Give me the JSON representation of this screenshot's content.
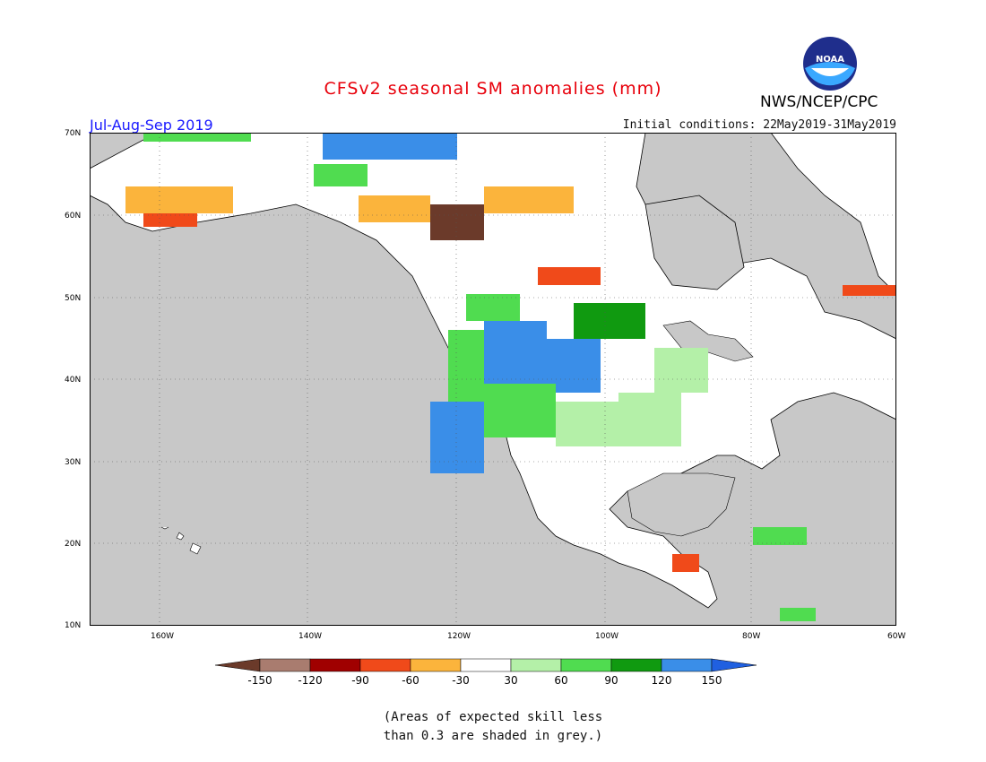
{
  "header": {
    "title": "CFSv2 seasonal SM anomalies (mm)",
    "season": "Jul-Aug-Sep 2019",
    "initial_conditions": "Initial conditions: 22May2019-31May2019",
    "agency": "NWS/NCEP/CPC",
    "logo_text": "NOAA"
  },
  "map": {
    "lat_labels": [
      "70N",
      "60N",
      "50N",
      "40N",
      "30N",
      "20N",
      "10N"
    ],
    "lon_labels": [
      "160W",
      "140W",
      "120W",
      "100W",
      "80W",
      "60W"
    ],
    "land_color": "#ffffff",
    "ocean_color": "#c8c8c8",
    "border_color": "#000000"
  },
  "legend": {
    "tick_labels": [
      "-150",
      "-120",
      "-90",
      "-60",
      "-30",
      "30",
      "60",
      "90",
      "120",
      "150"
    ],
    "colors": [
      "#6b3a2a",
      "#a97c6f",
      "#a00000",
      "#f04a1a",
      "#fbb43c",
      "#ffffff",
      "#b4f0a8",
      "#50dc50",
      "#109a10",
      "#3a8ee8",
      "#2060e0"
    ]
  },
  "note": {
    "line1": "(Areas of expected skill less",
    "line2": "than 0.3 are shaded in grey.)"
  }
}
